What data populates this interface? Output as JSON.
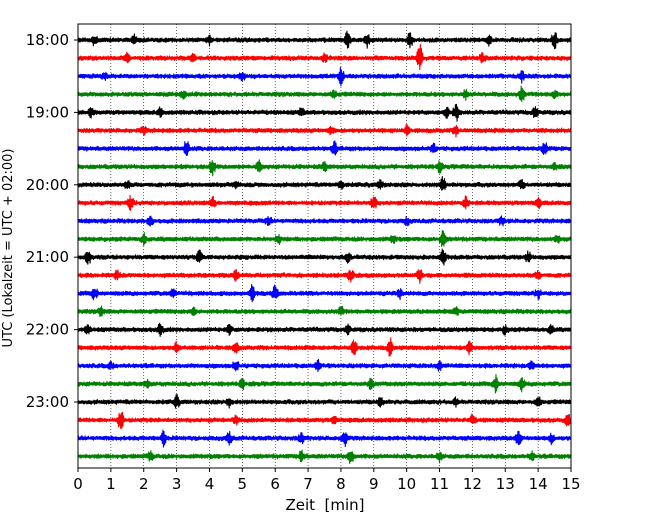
{
  "chart_data": {
    "type": "seismogram-helicorder",
    "title": "",
    "xlabel": "Zeit  [min]",
    "ylabel": "UTC (Lokalzeit = UTC + 02:00)",
    "xlim": [
      0,
      15
    ],
    "x_ticks": [
      "0",
      "1",
      "2",
      "3",
      "4",
      "5",
      "6",
      "7",
      "8",
      "9",
      "10",
      "11",
      "12",
      "13",
      "14",
      "15"
    ],
    "y_ticks": [
      {
        "label": "18:00",
        "row": 0
      },
      {
        "label": "19:00",
        "row": 4
      },
      {
        "label": "20:00",
        "row": 8
      },
      {
        "label": "21:00",
        "row": 12
      },
      {
        "label": "22:00",
        "row": 16
      },
      {
        "label": "23:00",
        "row": 20
      }
    ],
    "vertical_gridlines_dotted": true,
    "row_interval_minutes": 15,
    "color_cycle": [
      "#000000",
      "#ff0000",
      "#0000ff",
      "#008000"
    ],
    "series": [
      {
        "name": "18:00",
        "spikes": [
          [
            0.5,
            0.6
          ],
          [
            1.7,
            0.5
          ],
          [
            4.0,
            0.5
          ],
          [
            8.2,
            1.0
          ],
          [
            8.8,
            0.7
          ],
          [
            10.1,
            0.8
          ],
          [
            12.5,
            0.6
          ],
          [
            14.5,
            1.0
          ]
        ]
      },
      {
        "name": "18:15",
        "spikes": [
          [
            1.5,
            0.5
          ],
          [
            3.5,
            0.4
          ],
          [
            7.5,
            0.4
          ],
          [
            10.4,
            1.6
          ],
          [
            12.3,
            0.5
          ]
        ]
      },
      {
        "name": "18:30",
        "spikes": [
          [
            0.8,
            0.4
          ],
          [
            5.0,
            0.5
          ],
          [
            8.0,
            0.9
          ],
          [
            13.5,
            0.6
          ]
        ]
      },
      {
        "name": "18:45",
        "spikes": [
          [
            3.2,
            0.4
          ],
          [
            7.8,
            0.4
          ],
          [
            11.8,
            0.5
          ],
          [
            13.5,
            0.9
          ],
          [
            14.5,
            0.5
          ]
        ]
      },
      {
        "name": "19:00",
        "spikes": [
          [
            0.4,
            0.5
          ],
          [
            2.5,
            0.5
          ],
          [
            6.8,
            0.4
          ],
          [
            11.2,
            0.6
          ],
          [
            11.5,
            1.0
          ],
          [
            13.9,
            0.7
          ]
        ]
      },
      {
        "name": "19:15",
        "spikes": [
          [
            2.0,
            0.4
          ],
          [
            7.7,
            0.4
          ],
          [
            10.0,
            0.5
          ],
          [
            11.5,
            0.5
          ]
        ]
      },
      {
        "name": "19:30",
        "spikes": [
          [
            3.3,
            0.9
          ],
          [
            7.8,
            0.7
          ],
          [
            10.8,
            0.6
          ],
          [
            14.2,
            0.7
          ]
        ]
      },
      {
        "name": "19:45",
        "spikes": [
          [
            4.1,
            0.9
          ],
          [
            5.5,
            0.6
          ],
          [
            7.5,
            0.5
          ],
          [
            11.0,
            0.6
          ],
          [
            14.5,
            0.4
          ]
        ]
      },
      {
        "name": "20:00",
        "spikes": [
          [
            1.5,
            0.4
          ],
          [
            4.8,
            0.4
          ],
          [
            8.0,
            0.5
          ],
          [
            9.2,
            0.5
          ],
          [
            11.1,
            0.9
          ],
          [
            13.5,
            0.5
          ]
        ]
      },
      {
        "name": "20:15",
        "spikes": [
          [
            1.6,
            0.8
          ],
          [
            4.1,
            0.6
          ],
          [
            9.0,
            0.9
          ],
          [
            11.8,
            0.7
          ],
          [
            14.0,
            0.5
          ]
        ]
      },
      {
        "name": "20:30",
        "spikes": [
          [
            2.2,
            0.6
          ],
          [
            5.8,
            0.4
          ],
          [
            10.0,
            0.4
          ],
          [
            12.9,
            0.5
          ]
        ]
      },
      {
        "name": "20:45",
        "spikes": [
          [
            2.0,
            0.6
          ],
          [
            6.1,
            0.5
          ],
          [
            9.6,
            0.4
          ],
          [
            11.1,
            1.0
          ],
          [
            14.6,
            0.4
          ]
        ]
      },
      {
        "name": "21:00",
        "spikes": [
          [
            0.3,
            0.9
          ],
          [
            3.7,
            0.7
          ],
          [
            8.2,
            0.6
          ],
          [
            11.1,
            0.9
          ],
          [
            13.7,
            0.6
          ]
        ]
      },
      {
        "name": "21:15",
        "spikes": [
          [
            1.2,
            0.5
          ],
          [
            4.8,
            0.5
          ],
          [
            8.3,
            0.6
          ],
          [
            10.4,
            0.7
          ],
          [
            14.0,
            0.4
          ]
        ]
      },
      {
        "name": "21:30",
        "spikes": [
          [
            0.5,
            0.7
          ],
          [
            2.9,
            0.6
          ],
          [
            5.3,
            1.0
          ],
          [
            6.0,
            0.8
          ],
          [
            9.8,
            0.5
          ],
          [
            14.0,
            0.5
          ]
        ]
      },
      {
        "name": "21:45",
        "spikes": [
          [
            0.7,
            0.5
          ],
          [
            3.5,
            0.4
          ],
          [
            8.0,
            0.5
          ],
          [
            11.5,
            0.4
          ]
        ]
      },
      {
        "name": "22:00",
        "spikes": [
          [
            0.3,
            0.4
          ],
          [
            2.5,
            0.7
          ],
          [
            4.6,
            0.5
          ],
          [
            8.2,
            0.5
          ],
          [
            13.0,
            0.5
          ],
          [
            14.4,
            0.5
          ]
        ]
      },
      {
        "name": "22:15",
        "spikes": [
          [
            3.0,
            0.7
          ],
          [
            4.8,
            0.6
          ],
          [
            8.4,
            0.8
          ],
          [
            9.5,
            1.0
          ],
          [
            11.9,
            0.7
          ]
        ]
      },
      {
        "name": "22:30",
        "spikes": [
          [
            1.0,
            0.4
          ],
          [
            4.8,
            0.6
          ],
          [
            7.3,
            0.6
          ],
          [
            11.0,
            0.5
          ],
          [
            13.8,
            0.5
          ]
        ]
      },
      {
        "name": "22:45",
        "spikes": [
          [
            2.1,
            0.4
          ],
          [
            5.0,
            0.5
          ],
          [
            8.9,
            0.5
          ],
          [
            12.7,
            0.9
          ],
          [
            13.5,
            0.7
          ]
        ]
      },
      {
        "name": "23:00",
        "spikes": [
          [
            3.0,
            0.7
          ],
          [
            4.6,
            0.6
          ],
          [
            9.2,
            0.5
          ],
          [
            11.5,
            0.4
          ],
          [
            14.0,
            0.5
          ]
        ]
      },
      {
        "name": "23:15",
        "spikes": [
          [
            1.3,
            1.2
          ],
          [
            4.8,
            0.5
          ],
          [
            7.8,
            0.4
          ],
          [
            12.0,
            0.5
          ],
          [
            14.9,
            0.6
          ]
        ]
      },
      {
        "name": "23:30",
        "spikes": [
          [
            2.6,
            0.8
          ],
          [
            4.6,
            0.7
          ],
          [
            6.8,
            0.6
          ],
          [
            8.1,
            1.0
          ],
          [
            13.4,
            0.8
          ],
          [
            14.4,
            0.5
          ]
        ]
      },
      {
        "name": "23:45",
        "spikes": [
          [
            2.2,
            0.5
          ],
          [
            6.8,
            0.6
          ],
          [
            8.3,
            0.9
          ],
          [
            11.0,
            0.5
          ],
          [
            13.8,
            0.5
          ]
        ]
      }
    ]
  }
}
